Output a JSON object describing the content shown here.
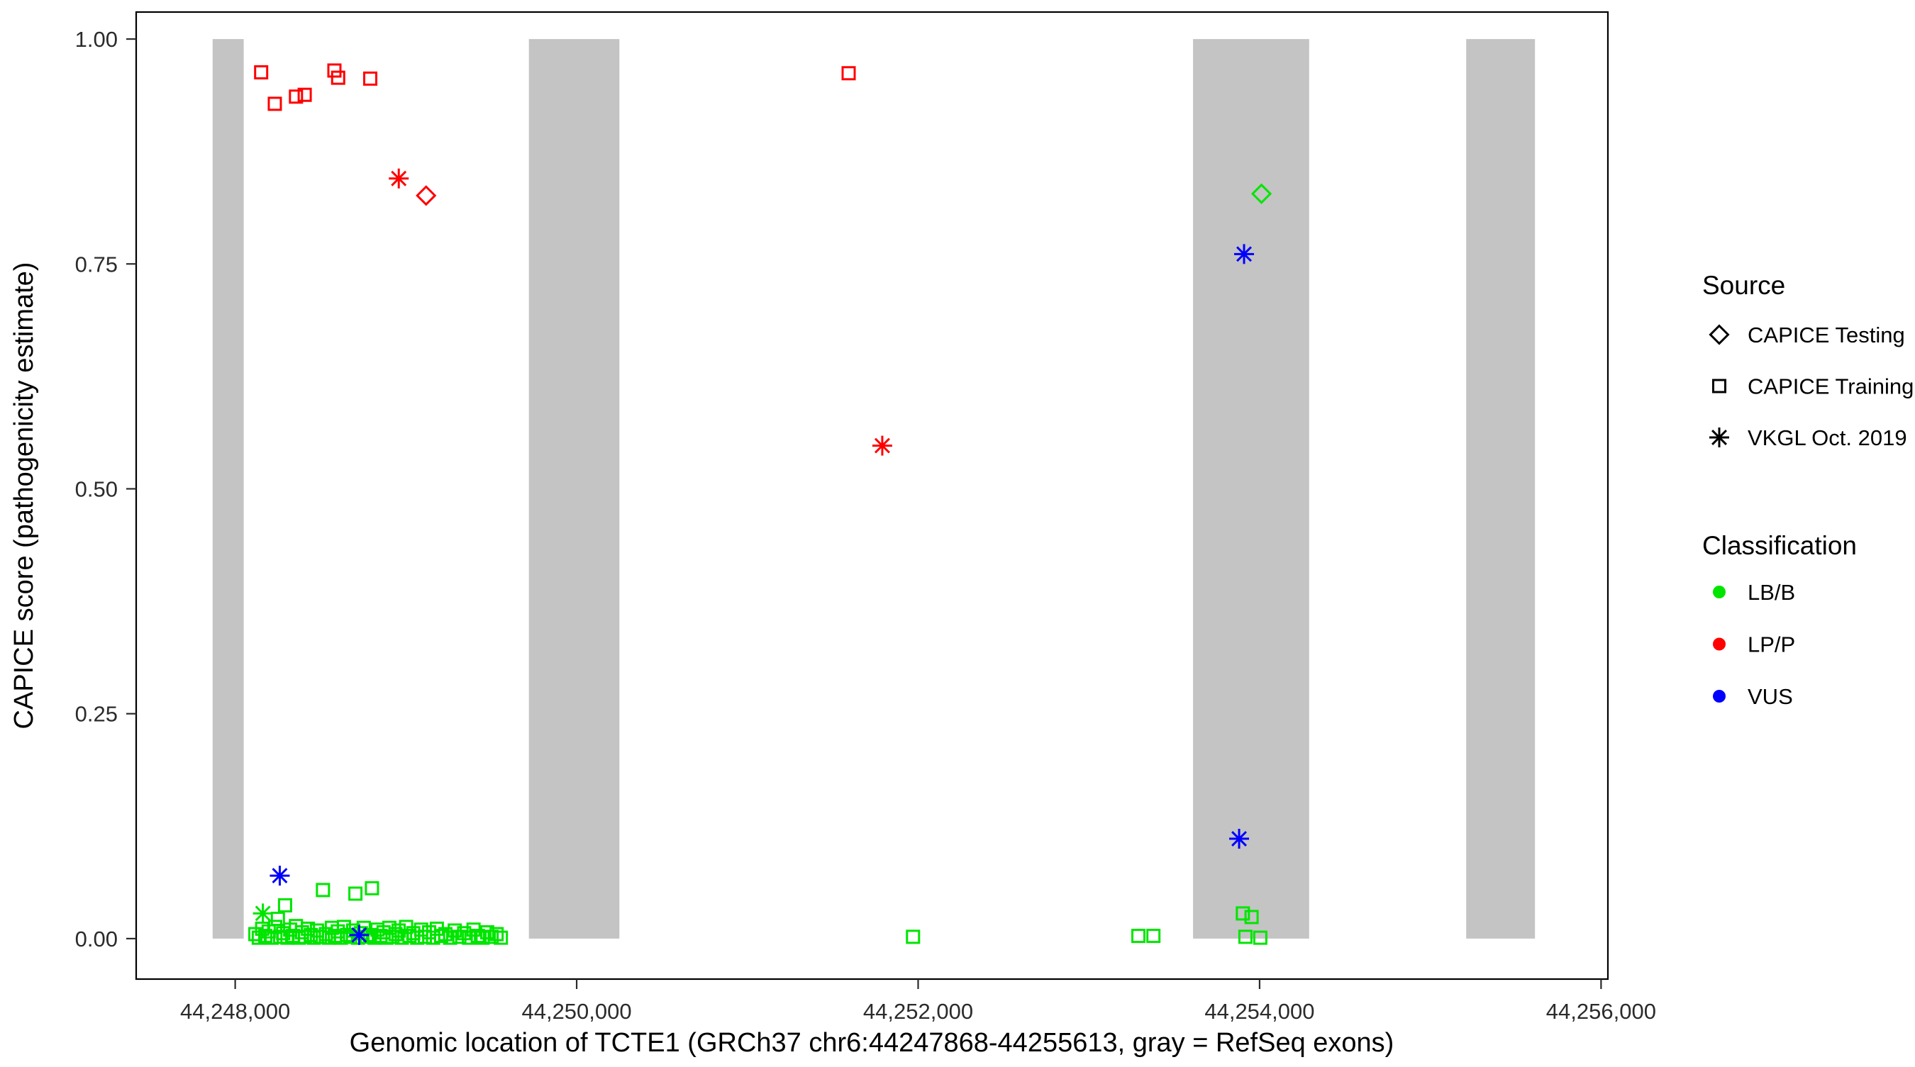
{
  "chart_data": {
    "type": "scatter",
    "title": "",
    "xlabel": "Genomic location of TCTE1 (GRCh37 chr6:44247868-44255613, gray = RefSeq exons)",
    "ylabel": "CAPICE score (pathogenicity estimate)",
    "xlim": [
      44247420,
      44256040
    ],
    "ylim": [
      -0.045,
      1.03
    ],
    "grid": "off",
    "exon_color": "#c4c4c4",
    "exons": [
      [
        44247868,
        44248050
      ],
      [
        44249720,
        44250250
      ],
      [
        44253610,
        44254290
      ],
      [
        44255210,
        44255613
      ]
    ],
    "x_ticks": [
      {
        "value": 44248000,
        "label": "44,248,000"
      },
      {
        "value": 44250000,
        "label": "44,250,000"
      },
      {
        "value": 44252000,
        "label": "44,252,000"
      },
      {
        "value": 44254000,
        "label": "44,254,000"
      },
      {
        "value": 44256000,
        "label": "44,256,000"
      }
    ],
    "y_ticks": [
      {
        "value": 0.0,
        "label": "0.00"
      },
      {
        "value": 0.25,
        "label": "0.25"
      },
      {
        "value": 0.5,
        "label": "0.50"
      },
      {
        "value": 0.75,
        "label": "0.75"
      },
      {
        "value": 1.0,
        "label": "1.00"
      }
    ],
    "series": [
      {
        "name": "CAPICE Training / LB/B",
        "source": "CAPICE Training",
        "classification": "LB/B",
        "shape": "square",
        "color": "#00E500",
        "points": [
          [
            44248118,
            0.005
          ],
          [
            44248138,
            0.001
          ],
          [
            44248158,
            0.011
          ],
          [
            44248176,
            0.003
          ],
          [
            44248196,
            0.008
          ],
          [
            44248214,
            0.001
          ],
          [
            44248234,
            0.013
          ],
          [
            44248250,
            0.022
          ],
          [
            44248263,
            0.002
          ],
          [
            44248281,
            0.006
          ],
          [
            44248292,
            0.037
          ],
          [
            44248306,
            0.001
          ],
          [
            44248322,
            0.01
          ],
          [
            44248339,
            0.003
          ],
          [
            44248356,
            0.014
          ],
          [
            44248373,
            0.001
          ],
          [
            44248391,
            0.007
          ],
          [
            44248408,
            0.002
          ],
          [
            44248426,
            0.011
          ],
          [
            44248443,
            0.004
          ],
          [
            44248461,
            0.001
          ],
          [
            44248479,
            0.009
          ],
          [
            44248496,
            0.002
          ],
          [
            44248514,
            0.054
          ],
          [
            44248531,
            0.005
          ],
          [
            44248549,
            0.001
          ],
          [
            44248566,
            0.012
          ],
          [
            44248584,
            0.003
          ],
          [
            44248601,
            0.008
          ],
          [
            44248619,
            0.001
          ],
          [
            44248637,
            0.013
          ],
          [
            44248656,
            0.004
          ],
          [
            44248673,
            0.002
          ],
          [
            44248691,
            0.009
          ],
          [
            44248704,
            0.05
          ],
          [
            44248719,
            0.001
          ],
          [
            44248736,
            0.006
          ],
          [
            44248753,
            0.012
          ],
          [
            44248771,
            0.002
          ],
          [
            44248789,
            0.004
          ],
          [
            44248801,
            0.056
          ],
          [
            44248816,
            0.001
          ],
          [
            44248833,
            0.01
          ],
          [
            44248851,
            0.003
          ],
          [
            44248869,
            0.007
          ],
          [
            44248886,
            0.001
          ],
          [
            44248903,
            0.012
          ],
          [
            44248921,
            0.002
          ],
          [
            44248939,
            0.005
          ],
          [
            44248957,
            0.009
          ],
          [
            44248976,
            0.001
          ],
          [
            44249001,
            0.013
          ],
          [
            44249021,
            0.003
          ],
          [
            44249043,
            0.006
          ],
          [
            44249066,
            0.001
          ],
          [
            44249089,
            0.01
          ],
          [
            44249111,
            0.002
          ],
          [
            44249136,
            0.007
          ],
          [
            44249159,
            0.001
          ],
          [
            44249181,
            0.011
          ],
          [
            44249206,
            0.003
          ],
          [
            44249231,
            0.005
          ],
          [
            44249259,
            0.001
          ],
          [
            44249286,
            0.009
          ],
          [
            44249313,
            0.002
          ],
          [
            44249341,
            0.006
          ],
          [
            44249369,
            0.001
          ],
          [
            44249396,
            0.01
          ],
          [
            44249421,
            0.003
          ],
          [
            44249449,
            0.001
          ],
          [
            44249476,
            0.007
          ],
          [
            44249502,
            0.002
          ],
          [
            44249531,
            0.005
          ],
          [
            44249556,
            0.001
          ],
          [
            44251970,
            0.002
          ],
          [
            44253290,
            0.003
          ],
          [
            44253378,
            0.003
          ],
          [
            44253902,
            0.028
          ],
          [
            44253953,
            0.024
          ],
          [
            44253917,
            0.002
          ],
          [
            44254004,
            0.001
          ]
        ]
      },
      {
        "name": "VKGL Oct. 2019 / LB/B",
        "source": "VKGL Oct. 2019",
        "classification": "LB/B",
        "shape": "asterisk",
        "color": "#00E500",
        "points": [
          [
            44248162,
            0.028
          ]
        ]
      },
      {
        "name": "CAPICE Training / LP/P",
        "source": "CAPICE Training",
        "classification": "LP/P",
        "shape": "square",
        "color": "#FF0000",
        "points": [
          [
            44248152,
            0.963
          ],
          [
            44248232,
            0.928
          ],
          [
            44248356,
            0.936
          ],
          [
            44248407,
            0.938
          ],
          [
            44248581,
            0.965
          ],
          [
            44248603,
            0.957
          ],
          [
            44248791,
            0.956
          ],
          [
            44251593,
            0.962
          ]
        ]
      },
      {
        "name": "VKGL Oct. 2019 / LP/P",
        "source": "VKGL Oct. 2019",
        "classification": "LP/P",
        "shape": "asterisk",
        "color": "#FF0000",
        "points": [
          [
            44248958,
            0.845
          ],
          [
            44251790,
            0.548
          ]
        ]
      },
      {
        "name": "CAPICE Testing / LP/P",
        "source": "CAPICE Testing",
        "classification": "LP/P",
        "shape": "diamond",
        "color": "#FF0000",
        "points": [
          [
            44249118,
            0.826
          ]
        ]
      },
      {
        "name": "CAPICE Testing / LB/B",
        "source": "CAPICE Testing",
        "classification": "LB/B",
        "shape": "diamond",
        "color": "#00E500",
        "points": [
          [
            44254011,
            0.828
          ]
        ]
      },
      {
        "name": "VKGL Oct. 2019 / VUS",
        "source": "VKGL Oct. 2019",
        "classification": "VUS",
        "shape": "asterisk",
        "color": "#0000FF",
        "points": [
          [
            44253909,
            0.761
          ],
          [
            44253880,
            0.111
          ],
          [
            44248261,
            0.07
          ],
          [
            44248726,
            0.004
          ]
        ]
      }
    ],
    "legend": {
      "position": "right",
      "source_title": "Source",
      "source_items": [
        {
          "label": "CAPICE Testing",
          "shape": "diamond"
        },
        {
          "label": "CAPICE Training",
          "shape": "square"
        },
        {
          "label": "VKGL Oct. 2019",
          "shape": "asterisk"
        }
      ],
      "classification_title": "Classification",
      "classification_items": [
        {
          "label": "LB/B",
          "color": "#00E500"
        },
        {
          "label": "LP/P",
          "color": "#FF0000"
        },
        {
          "label": "VUS",
          "color": "#0000FF"
        }
      ]
    }
  }
}
